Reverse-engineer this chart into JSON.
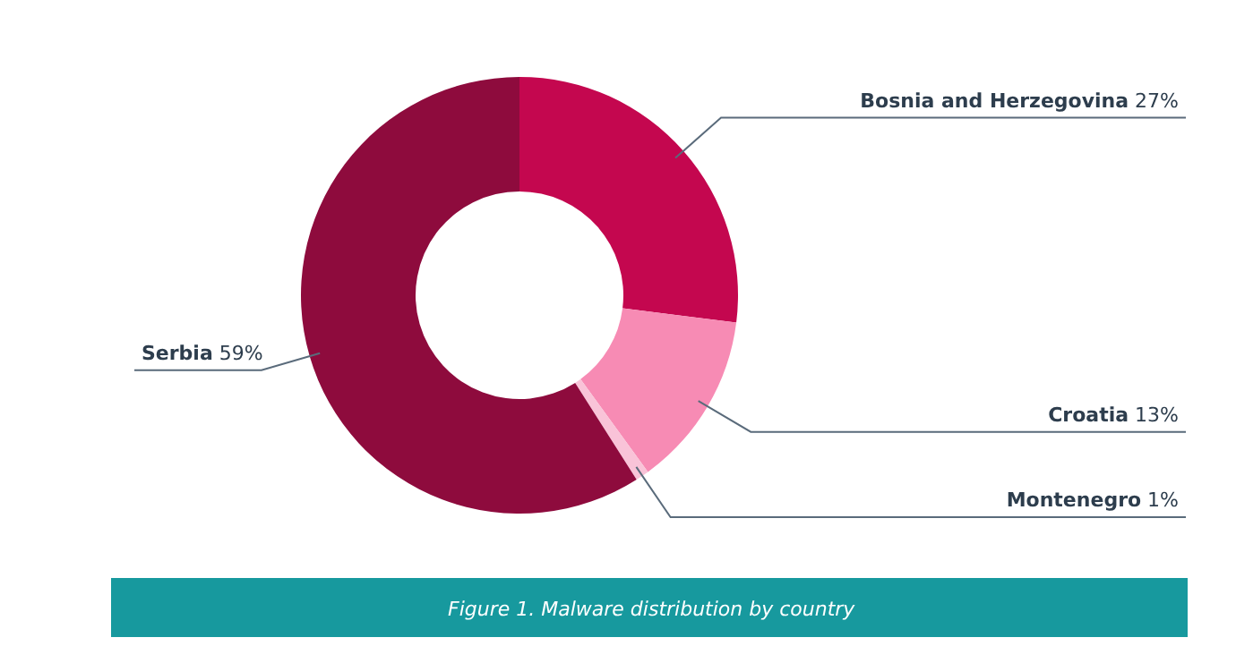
{
  "chart_data": {
    "type": "donut",
    "title": "Figure 1. Malware distribution by country",
    "categories": [
      "Bosnia and Herzegovina",
      "Croatia",
      "Montenegro",
      "Serbia"
    ],
    "values": [
      27,
      13,
      1,
      59
    ],
    "value_labels": [
      "27%",
      "13%",
      "1%",
      "59%"
    ],
    "colors": [
      "#c4074f",
      "#f78bb4",
      "#f9c3d8",
      "#8e0b3d"
    ]
  }
}
